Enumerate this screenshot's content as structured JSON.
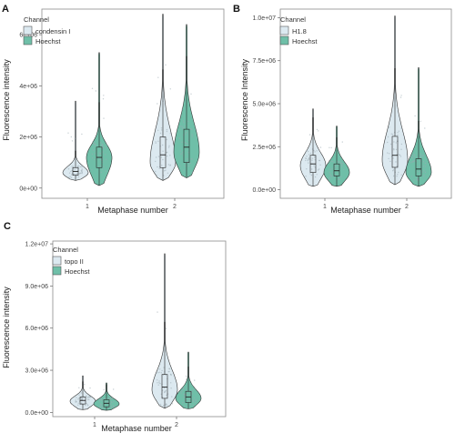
{
  "colors": {
    "light": "#dce9f0",
    "teal": "#6fbfa8",
    "point": "#9aa9b0",
    "frame": "#8c8c8c"
  },
  "chart_data": [
    {
      "panel": "A",
      "type": "violin",
      "categories": [
        "1",
        "2"
      ],
      "xlabel": "Metaphase number",
      "ylabel": "Fluorescence intensity",
      "ylim": [
        -400000,
        7000000
      ],
      "yticks": [
        0,
        2000000,
        4000000,
        6000000
      ],
      "yticklabels": [
        "0e+00",
        "2e+06",
        "4e+06",
        "6e+06"
      ],
      "legend": {
        "title": "Channel",
        "position": "top-left"
      },
      "series": [
        {
          "name": "condensin I",
          "color": "light",
          "groups": [
            {
              "category": "1",
              "min": 300000,
              "q1": 500000,
              "median": 650000,
              "q3": 800000,
              "max": 3400000,
              "mode": 600000
            },
            {
              "category": "2",
              "min": 300000,
              "q1": 800000,
              "median": 1300000,
              "q3": 2000000,
              "max": 6800000,
              "mode": 1000000
            }
          ]
        },
        {
          "name": "Hoechst",
          "color": "teal",
          "groups": [
            {
              "category": "1",
              "min": 100000,
              "q1": 800000,
              "median": 1200000,
              "q3": 1600000,
              "max": 5300000,
              "mode": 1200000
            },
            {
              "category": "2",
              "min": 400000,
              "q1": 1000000,
              "median": 1600000,
              "q3": 2300000,
              "max": 6400000,
              "mode": 1400000
            }
          ]
        }
      ]
    },
    {
      "panel": "B",
      "type": "violin",
      "categories": [
        "1",
        "2"
      ],
      "xlabel": "Metaphase number",
      "ylabel": "Fluorescence Intensity",
      "ylim": [
        -500000,
        10500000
      ],
      "yticks": [
        0,
        2500000,
        5000000,
        7500000,
        10000000
      ],
      "yticklabels": [
        "0.0e+00",
        "2.5e+06",
        "5.0e+06",
        "7.5e+06",
        "1.0e+07"
      ],
      "legend": {
        "title": "Channel",
        "position": "top-left"
      },
      "series": [
        {
          "name": "H1.8",
          "color": "light",
          "groups": [
            {
              "category": "1",
              "min": 200000,
              "q1": 1000000,
              "median": 1500000,
              "q3": 2000000,
              "max": 4700000,
              "mode": 1400000
            },
            {
              "category": "2",
              "min": 300000,
              "q1": 1300000,
              "median": 2000000,
              "q3": 3100000,
              "max": 10100000,
              "mode": 1700000
            }
          ]
        },
        {
          "name": "Hoechst",
          "color": "teal",
          "groups": [
            {
              "category": "1",
              "min": 200000,
              "q1": 800000,
              "median": 1100000,
              "q3": 1500000,
              "max": 3700000,
              "mode": 1000000
            },
            {
              "category": "2",
              "min": 200000,
              "q1": 800000,
              "median": 1200000,
              "q3": 1800000,
              "max": 7100000,
              "mode": 1000000
            }
          ]
        }
      ]
    },
    {
      "panel": "C",
      "type": "violin",
      "categories": [
        "1",
        "2"
      ],
      "xlabel": "Metaphase number",
      "ylabel": "Fluorescence intensity",
      "ylim": [
        -300000,
        12200000
      ],
      "yticks": [
        0,
        3000000,
        6000000,
        9000000,
        12000000
      ],
      "yticklabels": [
        "0.0e+00",
        "3.0e+06",
        "6.0e+06",
        "9.0e+06",
        "1.2e+07"
      ],
      "legend": {
        "title": "Channel",
        "position": "top-left"
      },
      "series": [
        {
          "name": "topo II",
          "color": "light",
          "groups": [
            {
              "category": "1",
              "min": 200000,
              "q1": 600000,
              "median": 850000,
              "q3": 1100000,
              "max": 2600000,
              "mode": 800000
            },
            {
              "category": "2",
              "min": 300000,
              "q1": 1000000,
              "median": 1800000,
              "q3": 2700000,
              "max": 11300000,
              "mode": 1600000
            }
          ]
        },
        {
          "name": "Hoechst",
          "color": "teal",
          "groups": [
            {
              "category": "1",
              "min": 150000,
              "q1": 400000,
              "median": 650000,
              "q3": 900000,
              "max": 2100000,
              "mode": 600000
            },
            {
              "category": "2",
              "min": 250000,
              "q1": 700000,
              "median": 1100000,
              "q3": 1500000,
              "max": 4300000,
              "mode": 1000000
            }
          ]
        }
      ]
    }
  ]
}
